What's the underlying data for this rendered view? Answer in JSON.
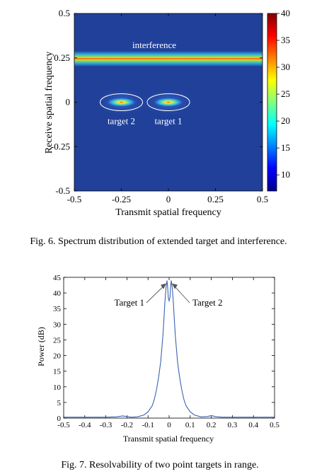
{
  "chart_data": [
    {
      "type": "heatmap",
      "xlabel": "Transmit spatial frequency",
      "ylabel": "Receive spatial frequency",
      "caption": "Fig. 6.   Spectrum distribution of extended target and interference.",
      "xlim": [
        -0.5,
        0.5
      ],
      "ylim": [
        -0.5,
        0.5
      ],
      "xticks": [
        -0.5,
        -0.25,
        0,
        0.25,
        0.5
      ],
      "xtick_labels": [
        "-0.5",
        "-0.25",
        "0",
        "0.25",
        "0.5"
      ],
      "yticks": [
        0.5,
        0.25,
        0,
        -0.25,
        -0.5
      ],
      "ytick_labels": [
        "0.5",
        "0.25",
        "0",
        "-0.25",
        "-0.5"
      ],
      "colorbar": {
        "min": 7,
        "max": 40,
        "ticks": [
          10,
          15,
          20,
          25,
          30,
          35,
          40
        ],
        "tick_labels": [
          "10",
          "15",
          "20",
          "25",
          "30",
          "35",
          "40"
        ]
      },
      "features": [
        {
          "label": "interference",
          "kind": "horizontal-band",
          "y": 0.245
        },
        {
          "label": "target 1",
          "kind": "spot",
          "x": 0.0,
          "y": 0.0
        },
        {
          "label": "target 2",
          "kind": "spot",
          "x": -0.25,
          "y": 0.0
        }
      ]
    },
    {
      "type": "line",
      "xlabel": "Transmit spatial frequency",
      "ylabel": "Power (dB)",
      "caption": "Fig. 7.   Resolvability of two point targets in range.",
      "xlim": [
        -0.5,
        0.5
      ],
      "ylim": [
        0,
        45
      ],
      "xticks": [
        -0.5,
        -0.4,
        -0.3,
        -0.2,
        -0.1,
        0,
        0.1,
        0.2,
        0.3,
        0.4,
        0.5
      ],
      "xtick_labels": [
        "-0.5",
        "-0.4",
        "-0.3",
        "-0.2",
        "-0.1",
        "0",
        "0.1",
        "0.2",
        "0.3",
        "0.4",
        "0.5"
      ],
      "yticks": [
        0,
        5,
        10,
        15,
        20,
        25,
        30,
        35,
        40,
        45
      ],
      "ytick_labels": [
        "0",
        "5",
        "10",
        "15",
        "20",
        "25",
        "30",
        "35",
        "40",
        "45"
      ],
      "series": [
        {
          "color": "#3b62b4",
          "x": [
            -0.5,
            -0.45,
            -0.4,
            -0.35,
            -0.3,
            -0.25,
            -0.22,
            -0.2,
            -0.18,
            -0.15,
            -0.12,
            -0.1,
            -0.08,
            -0.07,
            -0.06,
            -0.05,
            -0.04,
            -0.03,
            -0.025,
            -0.02,
            -0.015,
            -0.01,
            -0.007,
            -0.004,
            0.0,
            0.004,
            0.007,
            0.01,
            0.015,
            0.02,
            0.025,
            0.03,
            0.04,
            0.05,
            0.06,
            0.07,
            0.08,
            0.1,
            0.12,
            0.15,
            0.18,
            0.2,
            0.22,
            0.25,
            0.3,
            0.35,
            0.4,
            0.45,
            0.5
          ],
          "y": [
            0.3,
            0.3,
            0.3,
            0.3,
            0.3,
            0.4,
            0.7,
            0.5,
            0.3,
            0.4,
            1.0,
            2.0,
            4.0,
            6.0,
            9.0,
            13.0,
            18.0,
            26.0,
            31.0,
            37.0,
            41.5,
            44.0,
            42.0,
            38.5,
            37.5,
            38.5,
            42.0,
            44.0,
            41.5,
            37.0,
            31.0,
            26.0,
            18.0,
            13.0,
            9.0,
            6.0,
            4.0,
            2.0,
            1.0,
            0.4,
            0.5,
            0.8,
            0.5,
            0.3,
            0.3,
            0.3,
            0.3,
            0.3,
            0.3
          ]
        }
      ],
      "annotations": [
        {
          "text": "Target 1",
          "x": -0.01,
          "y": 43.5
        },
        {
          "text": "Target 2",
          "x": 0.01,
          "y": 43.5
        }
      ]
    }
  ]
}
